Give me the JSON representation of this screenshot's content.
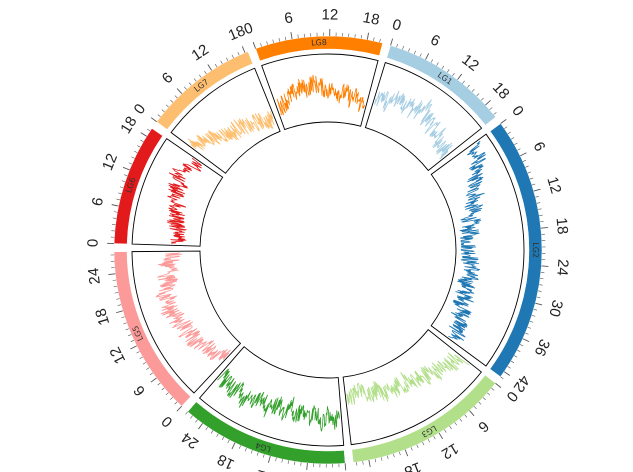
{
  "chart_data": {
    "type": "circos",
    "title": "",
    "track": {
      "type": "line",
      "ylim": [
        0,
        1
      ]
    },
    "sectors": [
      {
        "name": "LG1",
        "length": 20.5,
        "color": "#a6cee3",
        "ticks": [
          0,
          6,
          12,
          18
        ],
        "values": [
          0.4,
          0.45,
          0.55,
          0.35,
          0.6,
          0.5,
          0.65,
          0.45,
          0.7,
          0.5,
          0.6,
          0.55,
          0.75,
          0.5,
          0.6,
          0.45,
          0.55,
          0.4,
          0.5,
          0.35,
          0.45,
          0.3,
          0.4,
          0.25
        ]
      },
      {
        "name": "LG2",
        "length": 43,
        "color": "#1f78b4",
        "ticks": [
          0,
          6,
          12,
          18,
          24,
          30,
          36,
          42
        ],
        "values": [
          0.85,
          0.7,
          0.75,
          0.6,
          0.55,
          0.5,
          0.4,
          0.45,
          0.3,
          0.35,
          0.2,
          0.25,
          0.15,
          0.2,
          0.1,
          0.15,
          0.12,
          0.2,
          0.15,
          0.25,
          0.18,
          0.2,
          0.15,
          0.22,
          0.18,
          0.25,
          0.2,
          0.3,
          0.25,
          0.35,
          0.3,
          0.4,
          0.35
        ]
      },
      {
        "name": "LG3",
        "length": 26.5,
        "color": "#b2df8a",
        "ticks": [
          0,
          6,
          12,
          18,
          24
        ],
        "values": [
          0.7,
          0.55,
          0.6,
          0.5,
          0.45,
          0.55,
          0.4,
          0.5,
          0.35,
          0.45,
          0.3,
          0.4,
          0.35,
          0.45,
          0.3,
          0.4,
          0.25,
          0.35,
          0.3,
          0.25,
          0.2,
          0.3,
          0.25
        ]
      },
      {
        "name": "LG4",
        "length": 27,
        "color": "#33a02c",
        "ticks": [
          0,
          6,
          12,
          18,
          24
        ],
        "values": [
          0.6,
          0.65,
          0.55,
          0.7,
          0.5,
          0.65,
          0.55,
          0.6,
          0.45,
          0.6,
          0.5,
          0.55,
          0.65,
          0.5,
          0.6,
          0.55,
          0.7,
          0.5,
          0.65,
          0.55,
          0.6,
          0.5
        ]
      },
      {
        "name": "LG5",
        "length": 27.5,
        "color": "#fb9a99",
        "ticks": [
          0,
          6,
          12,
          18,
          24
        ],
        "values": [
          0.25,
          0.3,
          0.35,
          0.4,
          0.35,
          0.45,
          0.5,
          0.45,
          0.55,
          0.5,
          0.6,
          0.55,
          0.65,
          0.6,
          0.55,
          0.65,
          0.6,
          0.5,
          0.55,
          0.45,
          0.5,
          0.4,
          0.35
        ]
      },
      {
        "name": "LG6",
        "length": 19.5,
        "color": "#e31a1c",
        "ticks": [
          0,
          6,
          12,
          18
        ],
        "values": [
          0.25,
          0.3,
          0.35,
          0.3,
          0.4,
          0.35,
          0.45,
          0.4,
          0.5,
          0.45,
          0.55,
          0.5,
          0.6,
          0.55,
          0.5,
          0.45,
          0.4
        ]
      },
      {
        "name": "LG7",
        "length": 18.5,
        "color": "#fdbf6f",
        "ticks": [
          0,
          6,
          12,
          18
        ],
        "values": [
          0.65,
          0.6,
          0.55,
          0.5,
          0.45,
          0.4,
          0.35,
          0.3,
          0.35,
          0.3,
          0.25,
          0.2,
          0.25,
          0.2,
          0.15,
          0.2
        ]
      },
      {
        "name": "LG8",
        "length": 20.5,
        "color": "#ff7f00",
        "ticks": [
          0,
          6,
          12,
          18
        ],
        "values": [
          0.3,
          0.35,
          0.4,
          0.45,
          0.5,
          0.55,
          0.5,
          0.6,
          0.55,
          0.5,
          0.45,
          0.5,
          0.4,
          0.45,
          0.35,
          0.4,
          0.3,
          0.35
        ]
      }
    ]
  }
}
